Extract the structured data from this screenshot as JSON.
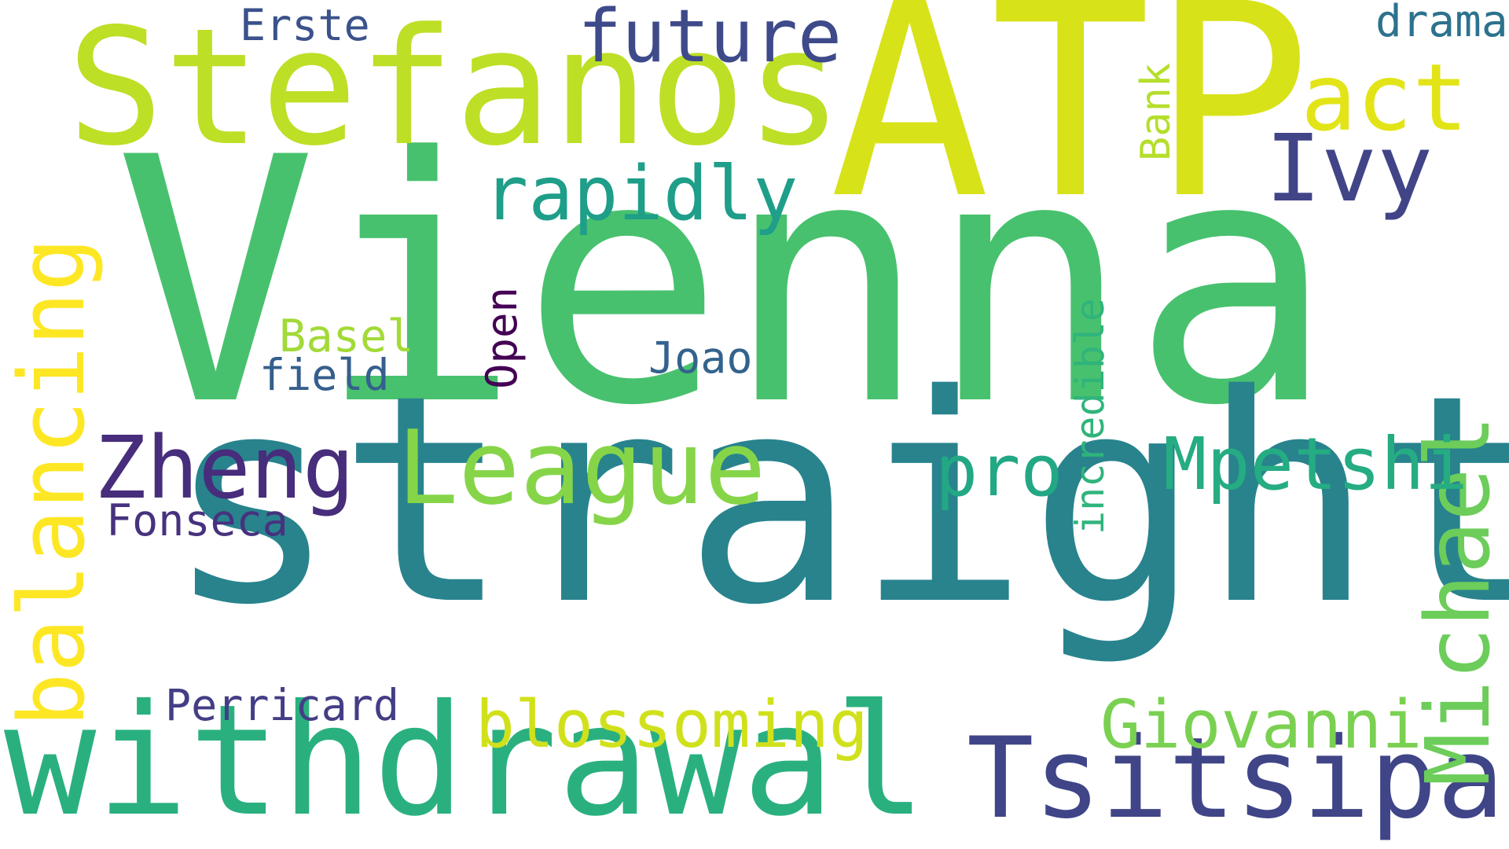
{
  "words": [
    {
      "key": "vienna",
      "text": "Vienna",
      "color": "#48c16e"
    },
    {
      "key": "straight",
      "text": "straight",
      "color": "#28838d"
    },
    {
      "key": "atp",
      "text": "ATP",
      "color": "#d8e219"
    },
    {
      "key": "stefanos",
      "text": "Stefanos",
      "color": "#bddf26"
    },
    {
      "key": "withdrawal",
      "text": "withdrawal",
      "color": "#2ab07f"
    },
    {
      "key": "tsitsipas",
      "text": "Tsitsipas",
      "color": "#404588"
    },
    {
      "key": "balancing",
      "text": "balancing",
      "color": "#fde725"
    },
    {
      "key": "michael",
      "text": "Michael",
      "color": "#6ccd5a"
    },
    {
      "key": "league",
      "text": "League",
      "color": "#86d549"
    },
    {
      "key": "zheng",
      "text": "Zheng",
      "color": "#472d7b"
    },
    {
      "key": "rapidly",
      "text": "rapidly",
      "color": "#1f9e89"
    },
    {
      "key": "future",
      "text": "future",
      "color": "#3e4a89"
    },
    {
      "key": "act",
      "text": "act",
      "color": "#e2e418"
    },
    {
      "key": "ivy",
      "text": "Ivy",
      "color": "#414487"
    },
    {
      "key": "mpetshi",
      "text": "Mpetshi",
      "color": "#25ac82"
    },
    {
      "key": "giovanni",
      "text": "Giovanni",
      "color": "#7ad151"
    },
    {
      "key": "blossoming",
      "text": "blossoming",
      "color": "#d0e11c"
    },
    {
      "key": "pro",
      "text": "pro",
      "color": "#22a884"
    },
    {
      "key": "incredible",
      "text": "incredible",
      "color": "#2fb47c"
    },
    {
      "key": "perricard",
      "text": "Perricard",
      "color": "#433e85"
    },
    {
      "key": "fonseca",
      "text": "Fonseca",
      "color": "#46327e"
    },
    {
      "key": "basel",
      "text": "Basel",
      "color": "#a2da37"
    },
    {
      "key": "field",
      "text": "field",
      "color": "#355f8d"
    },
    {
      "key": "open",
      "text": "Open",
      "color": "#440154"
    },
    {
      "key": "joao",
      "text": "Joao",
      "color": "#33638d"
    },
    {
      "key": "erste",
      "text": "Erste",
      "color": "#3b528b"
    },
    {
      "key": "bank",
      "text": "Bank",
      "color": "#b5de2b"
    },
    {
      "key": "drama",
      "text": "drama",
      "color": "#2c728e"
    }
  ]
}
